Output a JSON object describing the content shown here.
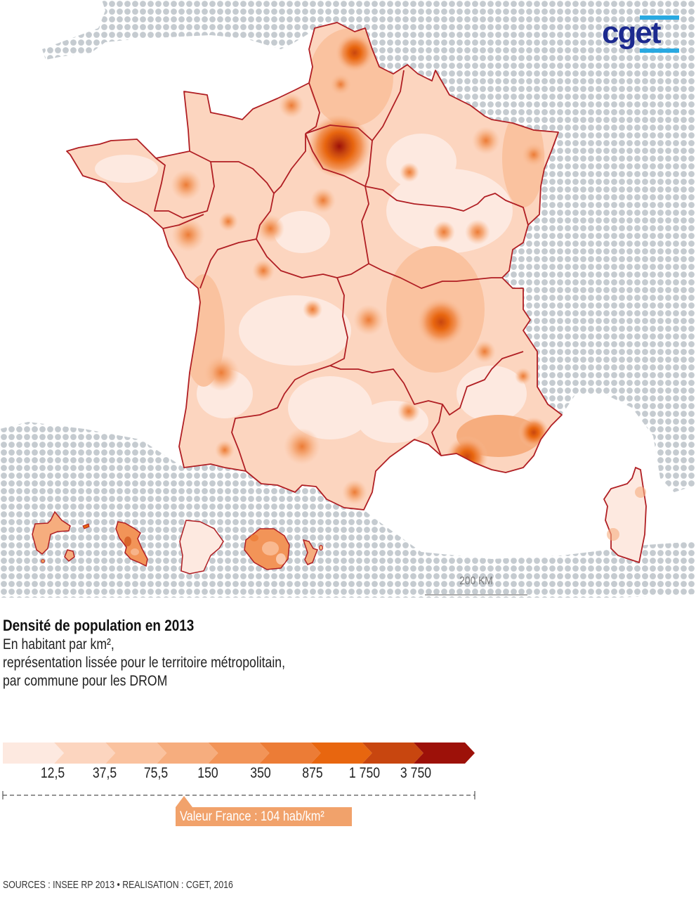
{
  "logo": {
    "text": "cget",
    "text_color": "#1c2a8f",
    "bar_color": "#29a9e1"
  },
  "map": {
    "subject": "France population density 2013",
    "background_land_pattern_color": "#c5cbd0",
    "border_color": "#b01e23",
    "regions": [
      "Hauts-de-France",
      "Normandie",
      "Île-de-France",
      "Grand Est",
      "Bretagne",
      "Pays de la Loire",
      "Centre-Val de Loire",
      "Bourgogne-Franche-Comté",
      "Nouvelle-Aquitaine",
      "Auvergne-Rhône-Alpes",
      "Occitanie",
      "Provence-Alpes-Côte d'Azur",
      "Corse"
    ],
    "drom_insets": [
      "Guadeloupe",
      "Martinique",
      "Guyane",
      "La Réunion",
      "Mayotte"
    ],
    "scale_bar": {
      "label": "200 KM"
    }
  },
  "titles": {
    "title": "Densité de population en 2013",
    "subtitle_line1": "En habitant par km²,",
    "subtitle_line2": "représentation lissée pour le territoire métropolitain,",
    "subtitle_line3": "par commune pour les DROM"
  },
  "legend": {
    "colors": [
      "#fde9e0",
      "#fcd5bf",
      "#fac29f",
      "#f6ad7e",
      "#f29458",
      "#ec7c36",
      "#e8660f",
      "#c8460f",
      "#9d1109"
    ],
    "tick_labels": [
      "12,5",
      "37,5",
      "75,5",
      "150",
      "350",
      "875",
      "1 750",
      "3 750"
    ],
    "france_value": "Valeur France : 104 hab/km²",
    "callout_color": "#f1a26b"
  },
  "chart_data": {
    "type": "choropleth-map",
    "title": "Densité de population en 2013",
    "subtitle": "En habitant par km², représentation lissée pour le territoire métropolitain, par commune pour les DROM",
    "unit": "hab/km²",
    "class_breaks": [
      12.5,
      37.5,
      75.5,
      150,
      350,
      875,
      1750,
      3750
    ],
    "class_colors": [
      "#fde9e0",
      "#fcd5bf",
      "#fac29f",
      "#f6ad7e",
      "#f29458",
      "#ec7c36",
      "#e8660f",
      "#c8460f",
      "#9d1109"
    ],
    "reference_value": {
      "label": "Valeur France",
      "value": 104,
      "unit": "hab/km²"
    },
    "hotspots": [
      {
        "place": "Paris / Île-de-France",
        "class": "> 3 750"
      },
      {
        "place": "Lyon",
        "class": "1 750 – 3 750"
      },
      {
        "place": "Lille",
        "class": "875 – 1 750"
      },
      {
        "place": "Marseille / Côte d'Azur",
        "class": "875 – 1 750"
      },
      {
        "place": "Toulouse",
        "class": "350 – 875"
      },
      {
        "place": "Bordeaux",
        "class": "350 – 875"
      }
    ],
    "scale_bar": "200 KM"
  },
  "footer": {
    "source": "SOURCES : INSEE RP 2013 • REALISATION : CGET, 2016"
  }
}
